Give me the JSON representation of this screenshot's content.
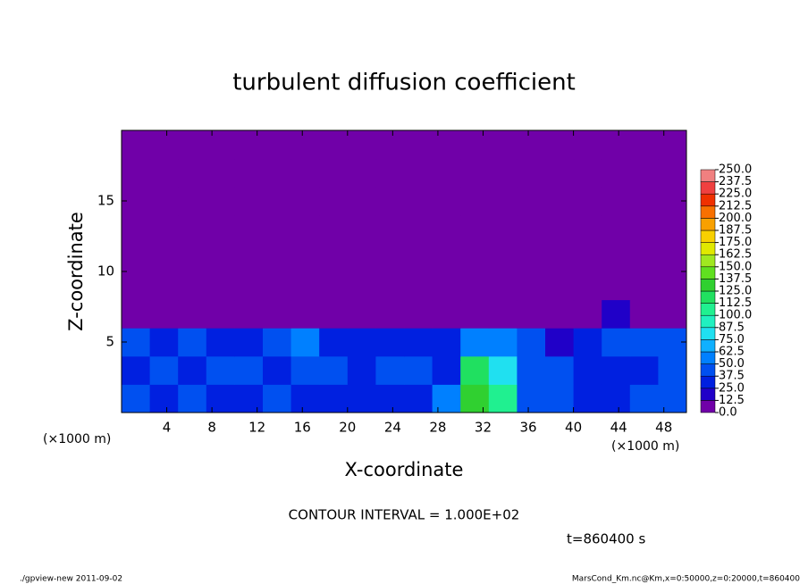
{
  "chart_data": {
    "type": "heatmap",
    "title": "turbulent diffusion coefficient",
    "x_label": "X-coordinate",
    "y_label": "Z-coordinate",
    "x_unit": "(×1000 m)",
    "y_unit": "(×1000 m)",
    "contour_note": "CONTOUR INTERVAL = 1.000E+02",
    "time_label": "t=860400 s",
    "footer_left": "./gpview-new  2011-09-02",
    "footer_right": "MarsCond_Km.nc@Km,x=0:50000,z=0:20000,t=860400",
    "xlim": [
      0,
      50
    ],
    "ylim": [
      0,
      20
    ],
    "xticks": [
      4,
      8,
      12,
      16,
      20,
      24,
      28,
      32,
      36,
      40,
      44,
      48
    ],
    "yticks": [
      5,
      10,
      15
    ],
    "x": [
      1.25,
      3.75,
      6.25,
      8.75,
      11.25,
      13.75,
      16.25,
      18.75,
      21.25,
      23.75,
      26.25,
      28.75,
      31.25,
      33.75,
      36.25,
      38.75,
      41.25,
      43.75,
      46.25,
      48.75
    ],
    "y": [
      1,
      3,
      5,
      7,
      9,
      11,
      13,
      15,
      17,
      19
    ],
    "values": [
      [
        40,
        30,
        45,
        35,
        30,
        40,
        35,
        30,
        30,
        35,
        30,
        50,
        125,
        110,
        45,
        40,
        30,
        35,
        40,
        45
      ],
      [
        35,
        45,
        30,
        40,
        45,
        35,
        40,
        45,
        35,
        40,
        45,
        30,
        115,
        75,
        40,
        45,
        35,
        30,
        35,
        40
      ],
      [
        40,
        35,
        45,
        30,
        35,
        40,
        50,
        35,
        30,
        35,
        30,
        25,
        55,
        60,
        45,
        20,
        30,
        40,
        45,
        40
      ],
      [
        0,
        0,
        0,
        0,
        0,
        0,
        0,
        0,
        0,
        0,
        0,
        0,
        0,
        0,
        0,
        0,
        0,
        12.5,
        0,
        0
      ],
      [
        0,
        0,
        0,
        0,
        0,
        0,
        0,
        0,
        0,
        0,
        0,
        0,
        0,
        0,
        0,
        0,
        0,
        0,
        0,
        0
      ],
      [
        0,
        0,
        0,
        0,
        0,
        0,
        0,
        0,
        0,
        0,
        0,
        0,
        0,
        0,
        0,
        0,
        0,
        0,
        0,
        0
      ],
      [
        0,
        0,
        0,
        0,
        0,
        0,
        0,
        0,
        0,
        0,
        0,
        0,
        0,
        0,
        0,
        0,
        0,
        0,
        0,
        0
      ],
      [
        0,
        0,
        0,
        0,
        0,
        0,
        0,
        0,
        0,
        0,
        0,
        0,
        0,
        0,
        0,
        0,
        0,
        0,
        0,
        0
      ],
      [
        0,
        0,
        0,
        0,
        0,
        0,
        0,
        0,
        0,
        0,
        0,
        0,
        0,
        0,
        0,
        0,
        0,
        0,
        0,
        0
      ],
      [
        0,
        0,
        0,
        0,
        0,
        0,
        0,
        0,
        0,
        0,
        0,
        0,
        0,
        0,
        0,
        0,
        0,
        0,
        0,
        0
      ]
    ],
    "levels": [
      {
        "value": 0,
        "label": "0.0"
      },
      {
        "value": 12.5,
        "label": "12.5"
      },
      {
        "value": 25,
        "label": "25.0"
      },
      {
        "value": 37.5,
        "label": "37.5"
      },
      {
        "value": 50,
        "label": "50.0"
      },
      {
        "value": 62.5,
        "label": "62.5"
      },
      {
        "value": 75,
        "label": "75.0"
      },
      {
        "value": 87.5,
        "label": "87.5"
      },
      {
        "value": 100,
        "label": "100.0"
      },
      {
        "value": 112.5,
        "label": "112.5"
      },
      {
        "value": 125,
        "label": "125.0"
      },
      {
        "value": 137.5,
        "label": "137.5"
      },
      {
        "value": 150,
        "label": "150.0"
      },
      {
        "value": 162.5,
        "label": "162.5"
      },
      {
        "value": 175,
        "label": "175.0"
      },
      {
        "value": 187.5,
        "label": "187.5"
      },
      {
        "value": 200,
        "label": "200.0"
      },
      {
        "value": 212.5,
        "label": "212.5"
      },
      {
        "value": 225,
        "label": "225.0"
      },
      {
        "value": 237.5,
        "label": "237.5"
      },
      {
        "value": 250,
        "label": "250.0"
      }
    ],
    "colors": [
      "#7000a8",
      "#2000c8",
      "#0020e0",
      "#0050f0",
      "#0080ff",
      "#10b0ff",
      "#20e0f0",
      "#20f0c0",
      "#20f090",
      "#20e060",
      "#30d030",
      "#60e020",
      "#a0e820",
      "#e0e800",
      "#f8d000",
      "#f8a000",
      "#f87000",
      "#f03000",
      "#f04040",
      "#f08080"
    ]
  }
}
